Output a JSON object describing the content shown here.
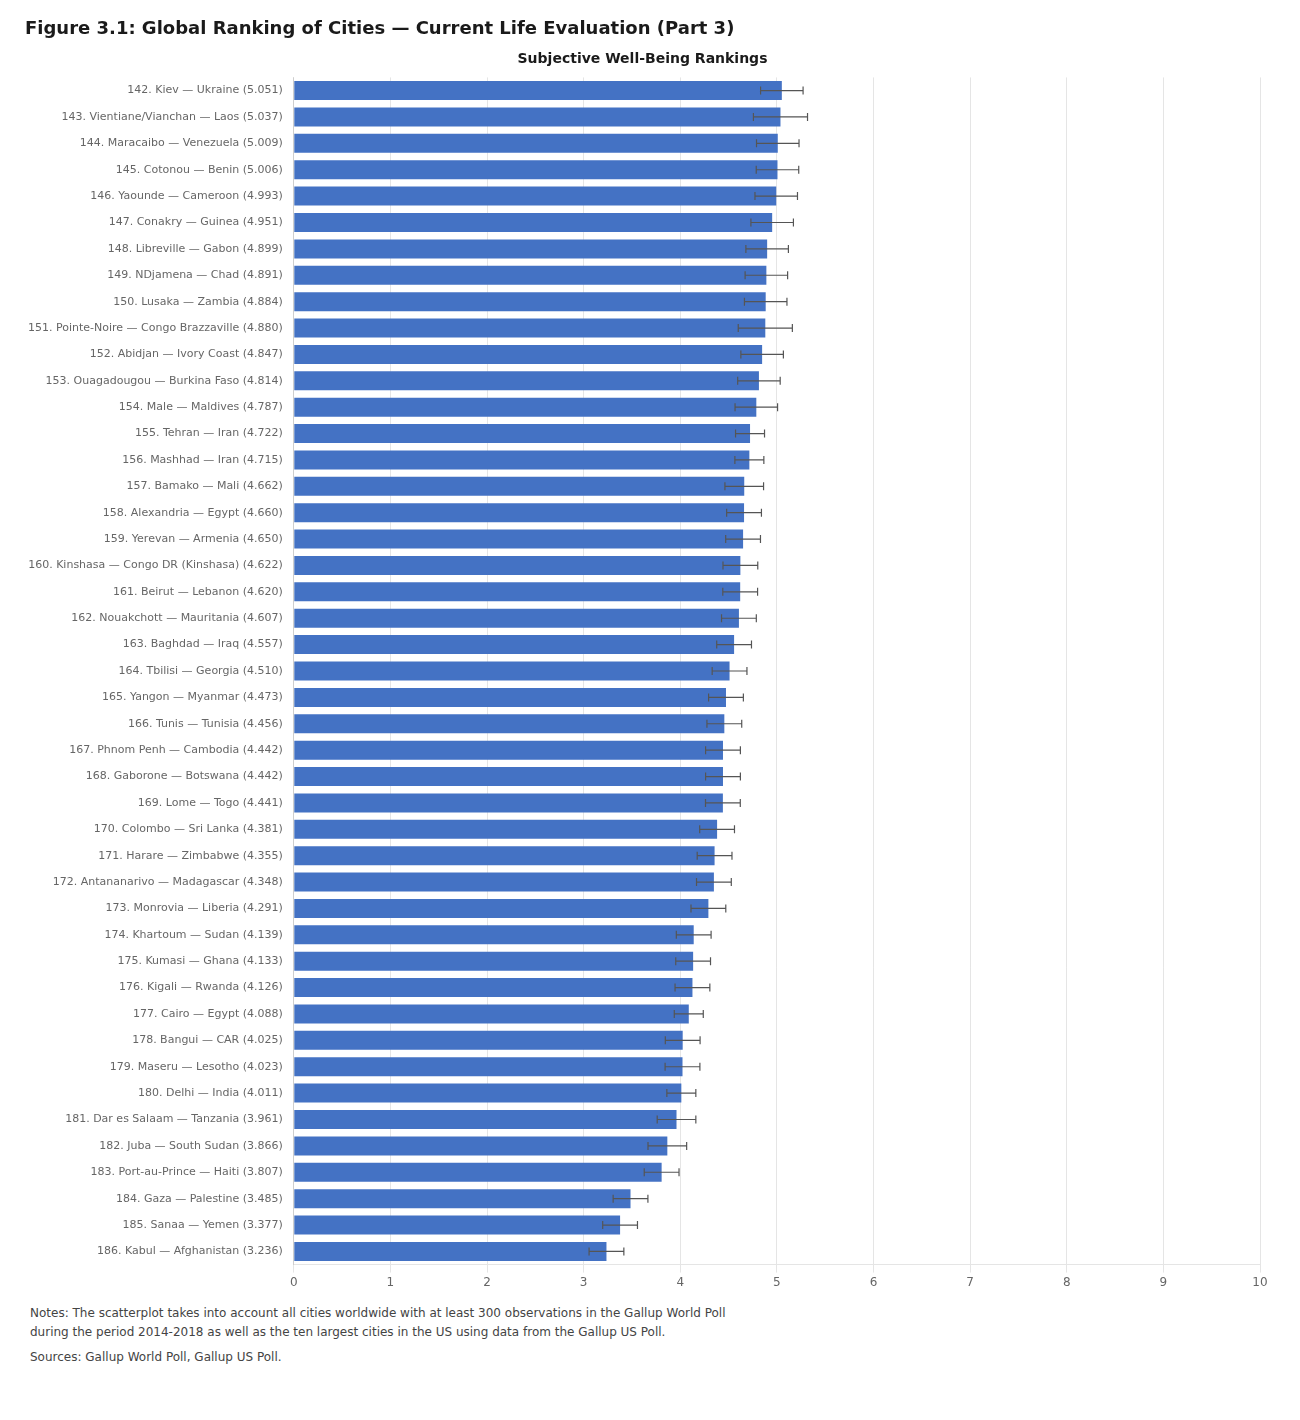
{
  "chart_data": {
    "type": "bar",
    "orientation": "horizontal",
    "title": "Figure 3.1: Global Ranking of Cities — Current Life Evaluation (Part 3)",
    "subtitle": "Subjective Well-Being Rankings",
    "categories": [
      "142. Kiev — Ukraine (5.051)",
      "143. Vientiane/Vianchan — Laos (5.037)",
      "144. Maracaibo — Venezuela (5.009)",
      "145. Cotonou — Benin (5.006)",
      "146. Yaounde — Cameroon (4.993)",
      "147. Conakry — Guinea (4.951)",
      "148. Libreville — Gabon (4.899)",
      "149. NDjamena — Chad (4.891)",
      "150. Lusaka — Zambia (4.884)",
      "151. Pointe-Noire — Congo Brazzaville (4.880)",
      "152. Abidjan — Ivory Coast (4.847)",
      "153. Ouagadougou — Burkina Faso (4.814)",
      "154. Male — Maldives (4.787)",
      "155. Tehran — Iran (4.722)",
      "156. Mashhad — Iran (4.715)",
      "157. Bamako — Mali (4.662)",
      "158. Alexandria — Egypt (4.660)",
      "159. Yerevan — Armenia (4.650)",
      "160. Kinshasa — Congo DR (Kinshasa) (4.622)",
      "161. Beirut — Lebanon (4.620)",
      "162. Nouakchott — Mauritania (4.607)",
      "163. Baghdad — Iraq (4.557)",
      "164. Tbilisi — Georgia (4.510)",
      "165. Yangon — Myanmar (4.473)",
      "166. Tunis — Tunisia (4.456)",
      "167. Phnom Penh — Cambodia (4.442)",
      "168. Gaborone — Botswana (4.442)",
      "169. Lome — Togo (4.441)",
      "170. Colombo — Sri Lanka (4.381)",
      "171. Harare — Zimbabwe (4.355)",
      "172. Antananarivo — Madagascar (4.348)",
      "173. Monrovia — Liberia (4.291)",
      "174. Khartoum — Sudan (4.139)",
      "175. Kumasi — Ghana (4.133)",
      "176. Kigali — Rwanda (4.126)",
      "177. Cairo — Egypt (4.088)",
      "178. Bangui — CAR (4.025)",
      "179. Maseru — Lesotho (4.023)",
      "180. Delhi — India (4.011)",
      "181. Dar es Salaam — Tanzania (3.961)",
      "182. Juba — South Sudan (3.866)",
      "183. Port-au-Prince — Haiti (3.807)",
      "184. Gaza — Palestine (3.485)",
      "185. Sanaa — Yemen (3.377)",
      "186. Kabul — Afghanistan (3.236)"
    ],
    "values": [
      5.051,
      5.037,
      5.009,
      5.006,
      4.993,
      4.951,
      4.899,
      4.891,
      4.884,
      4.88,
      4.847,
      4.814,
      4.787,
      4.722,
      4.715,
      4.662,
      4.66,
      4.65,
      4.622,
      4.62,
      4.607,
      4.557,
      4.51,
      4.473,
      4.456,
      4.442,
      4.442,
      4.441,
      4.381,
      4.355,
      4.348,
      4.291,
      4.139,
      4.133,
      4.126,
      4.088,
      4.025,
      4.023,
      4.011,
      3.961,
      3.866,
      3.807,
      3.485,
      3.377,
      3.236
    ],
    "errors": [
      0.22,
      0.28,
      0.22,
      0.22,
      0.22,
      0.22,
      0.22,
      0.22,
      0.22,
      0.28,
      0.22,
      0.22,
      0.22,
      0.15,
      0.15,
      0.2,
      0.18,
      0.18,
      0.18,
      0.18,
      0.18,
      0.18,
      0.18,
      0.18,
      0.18,
      0.18,
      0.18,
      0.18,
      0.18,
      0.18,
      0.18,
      0.18,
      0.18,
      0.18,
      0.18,
      0.15,
      0.18,
      0.18,
      0.15,
      0.2,
      0.2,
      0.18,
      0.18,
      0.18,
      0.18
    ],
    "color": "#4472C4",
    "xlim": [
      0,
      10
    ],
    "xticks": [
      0,
      1,
      2,
      3,
      4,
      5,
      6,
      7,
      8,
      9,
      10
    ],
    "grid": true,
    "annotations": [
      "Notes: The scatterplot takes into account all cities worldwide with at least 300 observations in the Gallup World Poll\nduring the period 2014-2018 as well as the ten largest cities in the US using data from the Gallup US Poll.",
      "Sources: Gallup World Poll, Gallup US Poll."
    ]
  }
}
